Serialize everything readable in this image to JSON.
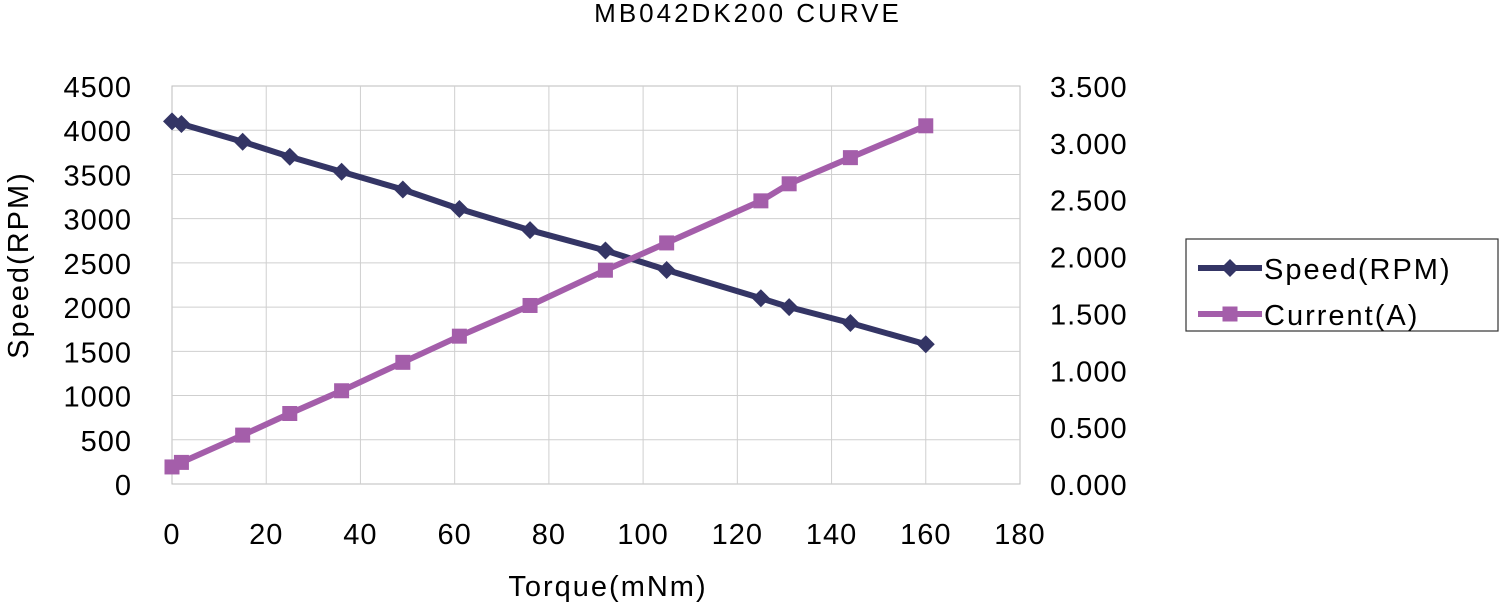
{
  "chart_data": {
    "type": "line",
    "title": "MB042DK200 CURVE",
    "xlabel": "Torque(mNm)",
    "ylabel": "Speed(RPM)",
    "y2label": "",
    "xlim": [
      0,
      180
    ],
    "ylim": [
      0,
      4500
    ],
    "y2lim": [
      0,
      3.5
    ],
    "xticks": [
      "0",
      "20",
      "40",
      "60",
      "80",
      "100",
      "120",
      "140",
      "160",
      "180"
    ],
    "yticks": [
      "0",
      "500",
      "1000",
      "1500",
      "2000",
      "2500",
      "3000",
      "3500",
      "4000",
      "4500"
    ],
    "y2ticks": [
      "0.000",
      "0.500",
      "1.000",
      "1.500",
      "2.000",
      "2.500",
      "3.000",
      "3.500"
    ],
    "grid": true,
    "legend_position": "right",
    "series": [
      {
        "name": "Speed(RPM)",
        "axis": "left",
        "color": "#343565",
        "marker": "diamond",
        "points": [
          [
            0,
            4100
          ],
          [
            2,
            4070
          ],
          [
            15,
            3870
          ],
          [
            25,
            3700
          ],
          [
            36,
            3530
          ],
          [
            49,
            3330
          ],
          [
            61,
            3110
          ],
          [
            76,
            2870
          ],
          [
            92,
            2640
          ],
          [
            105,
            2420
          ],
          [
            125,
            2100
          ],
          [
            131,
            2000
          ],
          [
            144,
            1820
          ],
          [
            160,
            1580
          ]
        ]
      },
      {
        "name": "Current(A)",
        "axis": "right",
        "color": "#a45eaa",
        "marker": "square",
        "points": [
          [
            0,
            0.15
          ],
          [
            2,
            0.19
          ],
          [
            15,
            0.43
          ],
          [
            25,
            0.62
          ],
          [
            36,
            0.82
          ],
          [
            49,
            1.07
          ],
          [
            61,
            1.3
          ],
          [
            76,
            1.57
          ],
          [
            92,
            1.88
          ],
          [
            105,
            2.12
          ],
          [
            125,
            2.49
          ],
          [
            131,
            2.64
          ],
          [
            144,
            2.87
          ],
          [
            160,
            3.15
          ]
        ]
      }
    ]
  }
}
